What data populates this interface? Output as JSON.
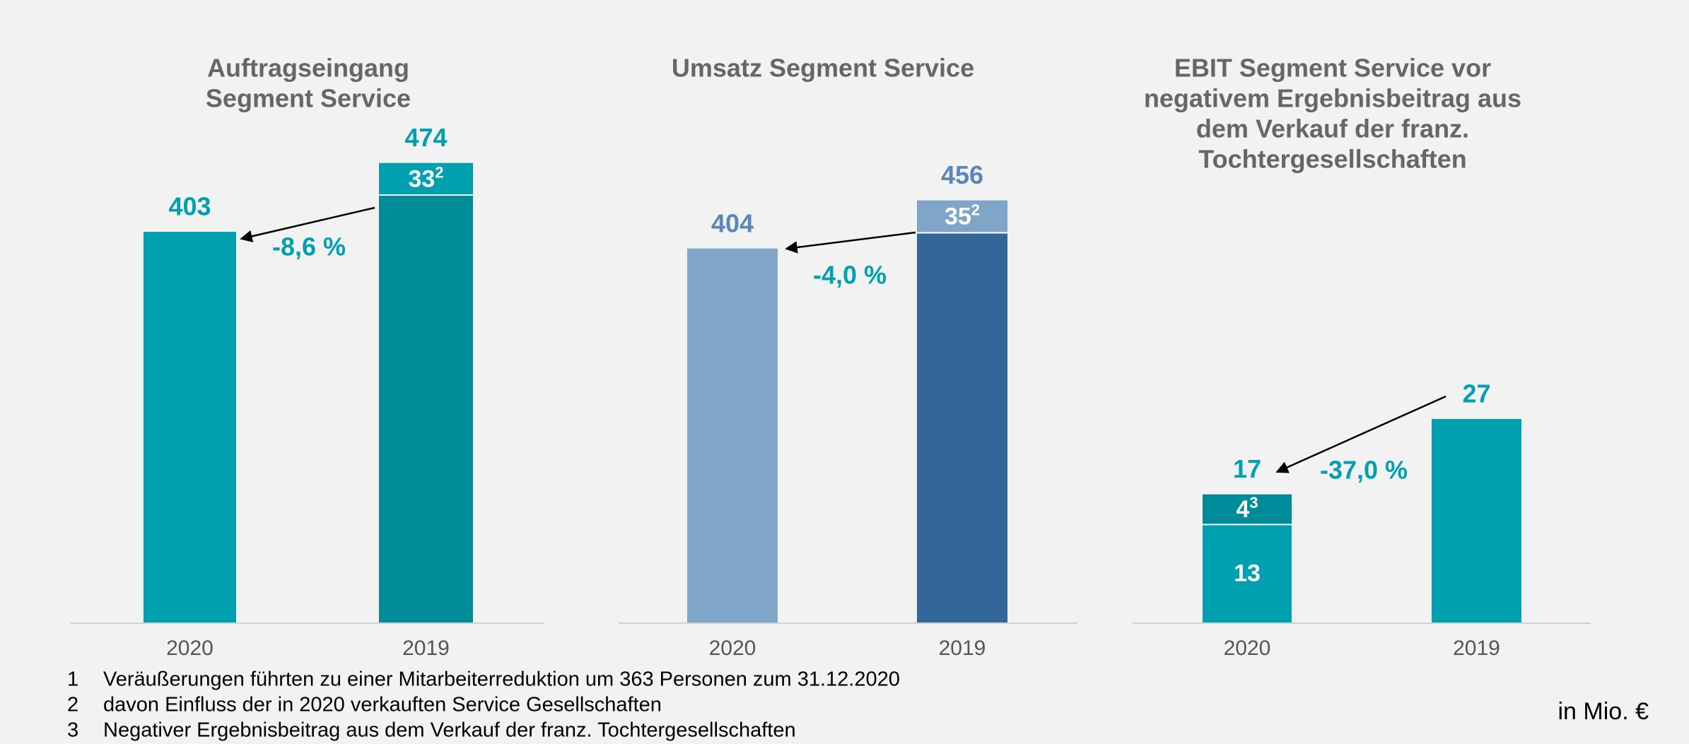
{
  "chart_data": [
    {
      "type": "bar",
      "title": [
        "Auftragseingang",
        "Segment Service"
      ],
      "categories": [
        "2020",
        "2019"
      ],
      "series": [
        {
          "values": [
            403,
            441
          ],
          "colors": [
            "#00a0b0",
            "#008b99"
          ],
          "labeled": [
            false,
            false
          ],
          "footnote_marks": [
            null,
            null
          ]
        },
        {
          "values": [
            null,
            33
          ],
          "colors": [
            "#00a0b0",
            "#00a0b0"
          ],
          "labeled": [
            false,
            true
          ],
          "footnote_marks": [
            null,
            "2"
          ]
        }
      ],
      "totals": [
        403,
        474
      ],
      "total_color": "#00a0b0",
      "change": "-8,6 %",
      "change_color": "#00a0b0",
      "ylim": [
        0,
        500
      ]
    },
    {
      "type": "bar",
      "title": [
        "Umsatz Segment Service"
      ],
      "categories": [
        "2020",
        "2019"
      ],
      "series": [
        {
          "values": [
            404,
            421
          ],
          "colors": [
            "#7fa5c8",
            "#336699"
          ],
          "labeled": [
            false,
            false
          ],
          "footnote_marks": [
            null,
            null
          ]
        },
        {
          "values": [
            null,
            35
          ],
          "colors": [
            "#7fa5c8",
            "#7fa5c8"
          ],
          "labeled": [
            false,
            true
          ],
          "footnote_marks": [
            null,
            "2"
          ]
        }
      ],
      "totals": [
        404,
        456
      ],
      "total_color": "#5b87b6",
      "change": "-4,0 %",
      "change_color": "#00a0b0",
      "ylim": [
        0,
        500
      ]
    },
    {
      "type": "bar",
      "title": [
        "EBIT Segment Service vor",
        "negativem Ergebnisbeitrag aus",
        "dem Verkauf der franz.",
        "Tochtergesellschaften"
      ],
      "categories": [
        "2020",
        "2019"
      ],
      "series": [
        {
          "values": [
            13,
            27
          ],
          "colors": [
            "#00a0b0",
            "#00a0b0"
          ],
          "labeled": [
            true,
            false
          ],
          "footnote_marks": [
            null,
            null
          ]
        },
        {
          "values": [
            4,
            null
          ],
          "colors": [
            "#008b99",
            "#008b99"
          ],
          "labeled": [
            true,
            false
          ],
          "footnote_marks": [
            "3",
            null
          ]
        }
      ],
      "totals": [
        17,
        27
      ],
      "total_color": "#00a0b0",
      "change": "-37,0 %",
      "change_color": "#00a0b0",
      "ylim": [
        0,
        60
      ]
    }
  ],
  "footnotes": [
    {
      "num": "1",
      "text": "Veräußerungen führten zu einer Mitarbeiterreduktion um 363 Personen zum 31.12.2020"
    },
    {
      "num": "2",
      "text": "davon Einfluss der in 2020 verkauften Service Gesellschaften"
    },
    {
      "num": "3",
      "text": "Negativer Ergebnisbeitrag aus dem Verkauf der franz. Tochtergesellschaften"
    }
  ],
  "unit": "in Mio. €"
}
